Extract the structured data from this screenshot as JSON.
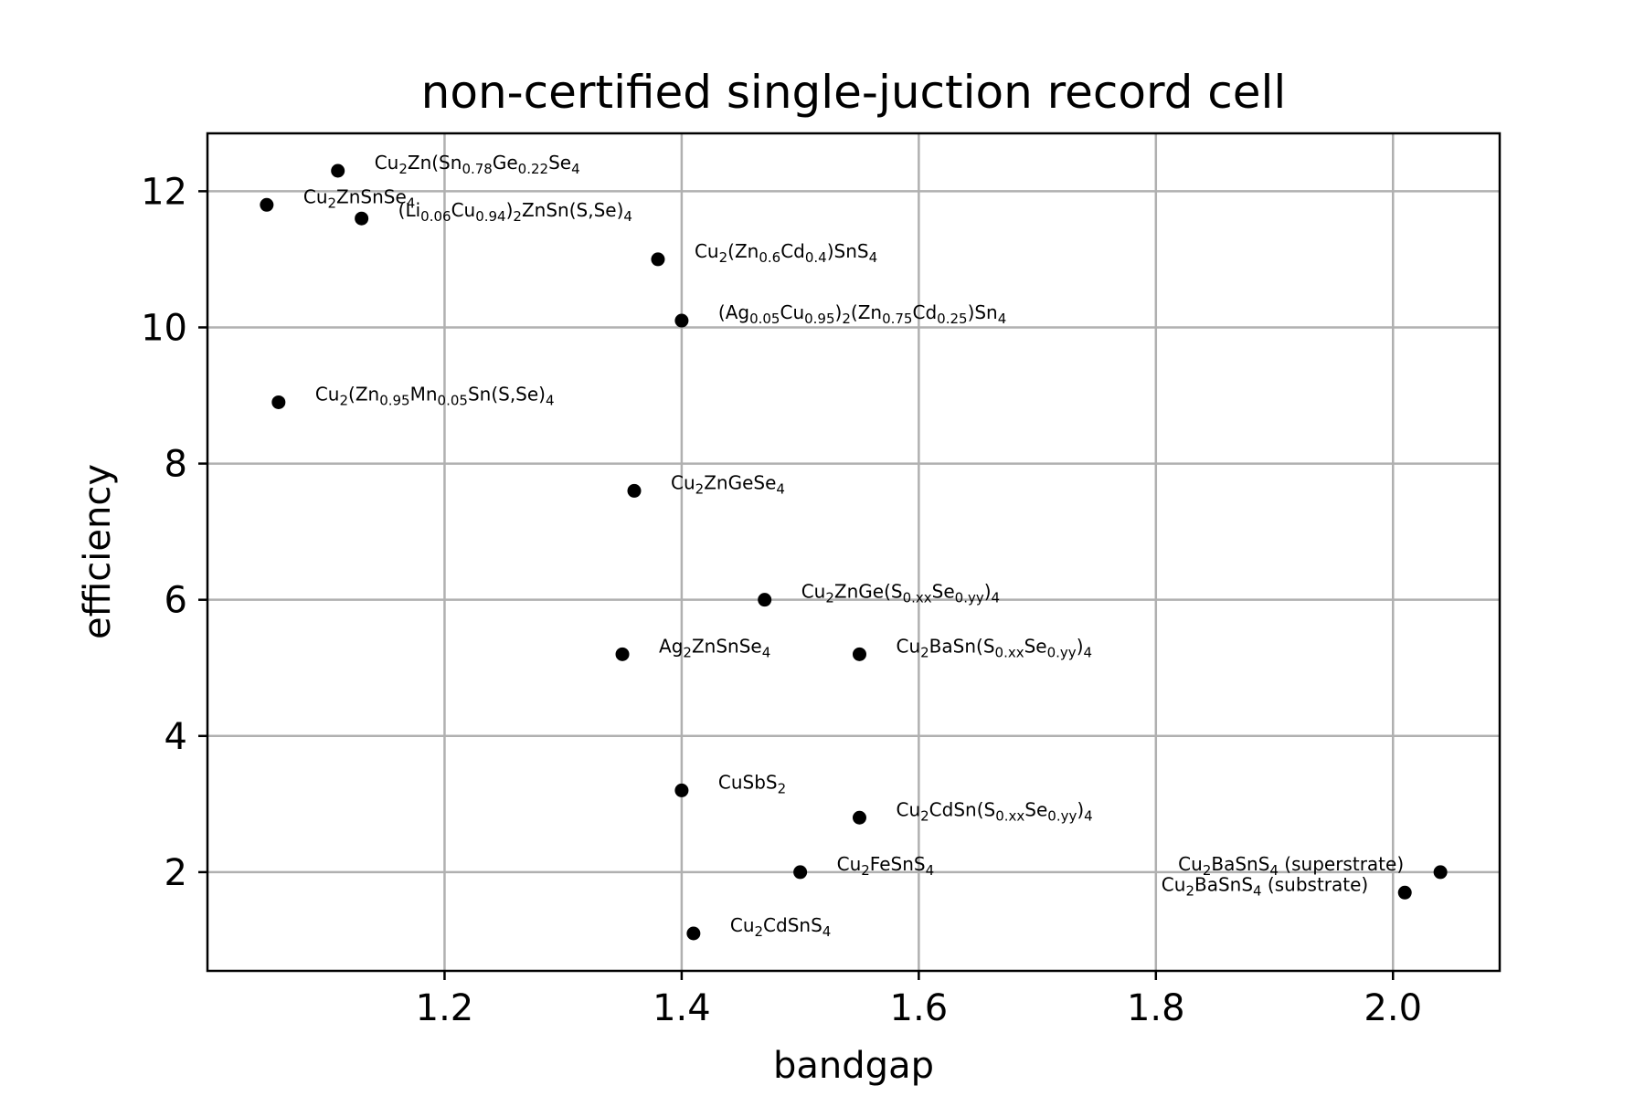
{
  "chart_data": {
    "type": "scatter",
    "title": "non-certified single-juction record cell",
    "xlabel": "bandgap",
    "ylabel": "efficiency",
    "xlim": [
      1.0,
      2.09
    ],
    "ylim": [
      0.55,
      12.85
    ],
    "xticks": [
      1.2,
      1.4,
      1.6,
      1.8,
      2.0
    ],
    "xtick_labels": [
      "1.2",
      "1.4",
      "1.6",
      "1.8",
      "2.0"
    ],
    "yticks": [
      2,
      4,
      6,
      8,
      10,
      12
    ],
    "ytick_labels": [
      "2",
      "4",
      "6",
      "8",
      "10",
      "12"
    ],
    "grid": true,
    "marker_color": "#000000",
    "points": [
      {
        "x": 1.11,
        "y": 12.3,
        "label": [
          [
            "Cu",
            "n"
          ],
          [
            "2",
            "sub"
          ],
          [
            "Zn(Sn",
            "n"
          ],
          [
            "0.78",
            "sub"
          ],
          [
            "Ge",
            "n"
          ],
          [
            "0.22",
            "sub"
          ],
          [
            "Se",
            "n"
          ],
          [
            "4",
            "sub"
          ]
        ],
        "anchor": "start"
      },
      {
        "x": 1.05,
        "y": 11.8,
        "label": [
          [
            "Cu",
            "n"
          ],
          [
            "2",
            "sub"
          ],
          [
            "ZnSnSe",
            "n"
          ],
          [
            "4",
            "sub"
          ]
        ],
        "anchor": "start"
      },
      {
        "x": 1.13,
        "y": 11.6,
        "label": [
          [
            "(Li",
            "n"
          ],
          [
            "0.06",
            "sub"
          ],
          [
            "Cu",
            "n"
          ],
          [
            "0.94",
            "sub"
          ],
          [
            ")",
            "n"
          ],
          [
            "2",
            "sub"
          ],
          [
            "ZnSn(S,Se)",
            "n"
          ],
          [
            "4",
            "sub"
          ]
        ],
        "anchor": "start"
      },
      {
        "x": 1.38,
        "y": 11.0,
        "label": [
          [
            "Cu",
            "n"
          ],
          [
            "2",
            "sub"
          ],
          [
            "(Zn",
            "n"
          ],
          [
            "0.6",
            "sub"
          ],
          [
            "Cd",
            "n"
          ],
          [
            "0.4",
            "sub"
          ],
          [
            ")SnS",
            "n"
          ],
          [
            "4",
            "sub"
          ]
        ],
        "anchor": "start"
      },
      {
        "x": 1.4,
        "y": 10.1,
        "label": [
          [
            "(Ag",
            "n"
          ],
          [
            "0.05",
            "sub"
          ],
          [
            "Cu",
            "n"
          ],
          [
            "0.95",
            "sub"
          ],
          [
            ")",
            "n"
          ],
          [
            "2",
            "sub"
          ],
          [
            "(Zn",
            "n"
          ],
          [
            "0.75",
            "sub"
          ],
          [
            "Cd",
            "n"
          ],
          [
            "0.25",
            "sub"
          ],
          [
            ")Sn",
            "n"
          ],
          [
            "4",
            "sub"
          ]
        ],
        "anchor": "start"
      },
      {
        "x": 1.06,
        "y": 8.9,
        "label": [
          [
            "Cu",
            "n"
          ],
          [
            "2",
            "sub"
          ],
          [
            "(Zn",
            "n"
          ],
          [
            "0.95",
            "sub"
          ],
          [
            "Mn",
            "n"
          ],
          [
            "0.05",
            "sub"
          ],
          [
            "Sn(S,Se)",
            "n"
          ],
          [
            "4",
            "sub"
          ]
        ],
        "anchor": "start"
      },
      {
        "x": 1.36,
        "y": 7.6,
        "label": [
          [
            "Cu",
            "n"
          ],
          [
            "2",
            "sub"
          ],
          [
            "ZnGeSe",
            "n"
          ],
          [
            "4",
            "sub"
          ]
        ],
        "anchor": "start"
      },
      {
        "x": 1.47,
        "y": 6.0,
        "label": [
          [
            "Cu",
            "n"
          ],
          [
            "2",
            "sub"
          ],
          [
            "ZnGe(S",
            "n"
          ],
          [
            "0.xx",
            "sub"
          ],
          [
            "Se",
            "n"
          ],
          [
            "0.yy",
            "sub"
          ],
          [
            ")",
            "n"
          ],
          [
            "4",
            "sub"
          ]
        ],
        "anchor": "start"
      },
      {
        "x": 1.35,
        "y": 5.2,
        "label": [
          [
            "Ag",
            "n"
          ],
          [
            "2",
            "sub"
          ],
          [
            "ZnSnSe",
            "n"
          ],
          [
            "4",
            "sub"
          ]
        ],
        "anchor": "start"
      },
      {
        "x": 1.55,
        "y": 5.2,
        "label": [
          [
            "Cu",
            "n"
          ],
          [
            "2",
            "sub"
          ],
          [
            "BaSn(S",
            "n"
          ],
          [
            "0.xx",
            "sub"
          ],
          [
            "Se",
            "n"
          ],
          [
            "0.yy",
            "sub"
          ],
          [
            ")",
            "n"
          ],
          [
            "4",
            "sub"
          ]
        ],
        "anchor": "start"
      },
      {
        "x": 1.4,
        "y": 3.2,
        "label": [
          [
            "CuSbS",
            "n"
          ],
          [
            "2",
            "sub"
          ]
        ],
        "anchor": "start"
      },
      {
        "x": 1.55,
        "y": 2.8,
        "label": [
          [
            "Cu",
            "n"
          ],
          [
            "2",
            "sub"
          ],
          [
            "CdSn(S",
            "n"
          ],
          [
            "0.xx",
            "sub"
          ],
          [
            "Se",
            "n"
          ],
          [
            "0.yy",
            "sub"
          ],
          [
            ")",
            "n"
          ],
          [
            "4",
            "sub"
          ]
        ],
        "anchor": "start"
      },
      {
        "x": 1.5,
        "y": 2.0,
        "label": [
          [
            "Cu",
            "n"
          ],
          [
            "2",
            "sub"
          ],
          [
            "FeSnS",
            "n"
          ],
          [
            "4",
            "sub"
          ]
        ],
        "anchor": "start"
      },
      {
        "x": 1.41,
        "y": 1.1,
        "label": [
          [
            "Cu",
            "n"
          ],
          [
            "2",
            "sub"
          ],
          [
            "CdSnS",
            "n"
          ],
          [
            "4",
            "sub"
          ]
        ],
        "anchor": "start"
      },
      {
        "x": 2.04,
        "y": 2.0,
        "label": [
          [
            "Cu",
            "n"
          ],
          [
            "2",
            "sub"
          ],
          [
            "BaSnS",
            "n"
          ],
          [
            "4",
            "sub"
          ],
          [
            " (superstrate)",
            "n"
          ]
        ],
        "anchor": "end"
      },
      {
        "x": 2.01,
        "y": 1.7,
        "label": [
          [
            "Cu",
            "n"
          ],
          [
            "2",
            "sub"
          ],
          [
            "BaSnS",
            "n"
          ],
          [
            "4",
            "sub"
          ],
          [
            " (substrate)",
            "n"
          ]
        ],
        "anchor": "end"
      }
    ]
  }
}
